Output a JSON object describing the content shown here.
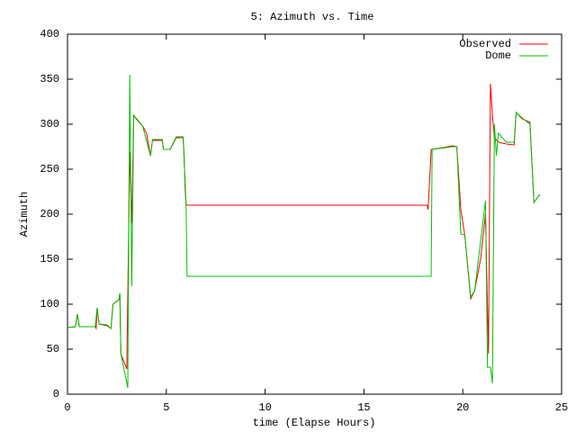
{
  "chart_data": {
    "type": "line",
    "title": "5: Azimuth vs. Time",
    "x_label": "time (Elapse Hours)",
    "y_label": "Azimuth",
    "xlim": [
      0,
      25
    ],
    "xticks": [
      0,
      5,
      10,
      15,
      20,
      25
    ],
    "ylim": [
      0,
      400
    ],
    "yticks": [
      0,
      50,
      100,
      150,
      200,
      250,
      300,
      350,
      400
    ],
    "legend": "upper right",
    "series": [
      {
        "name": "Observed",
        "color": "#ff0000",
        "x": [
          0,
          0.4,
          0.5,
          0.6,
          1.4,
          1.45,
          1.5,
          1.6,
          2.0,
          2.2,
          2.3,
          2.6,
          2.65,
          2.7,
          3.0,
          3.15,
          3.25,
          3.35,
          3.5,
          3.8,
          4.0,
          4.2,
          4.3,
          4.8,
          4.85,
          5.2,
          5.5,
          5.85,
          5.9,
          5.95,
          6.0,
          18.2,
          18.25,
          18.4,
          19.0,
          19.5,
          19.7,
          19.9,
          20.1,
          20.4,
          20.6,
          20.9,
          21.15,
          21.3,
          21.4,
          21.5,
          21.6,
          21.8,
          22.2,
          22.6,
          22.7,
          23.0,
          23.4,
          23.6,
          23.9
        ],
        "values": [
          74,
          75,
          89,
          75,
          75,
          73,
          96,
          78,
          76,
          73,
          100,
          105,
          112,
          45,
          28,
          269,
          190,
          310,
          305,
          298,
          290,
          265,
          282,
          282,
          272,
          272,
          285,
          285,
          266,
          228,
          210,
          210,
          205,
          272,
          274,
          276,
          275,
          205,
          177,
          106,
          115,
          150,
          200,
          45,
          345,
          310,
          285,
          280,
          278,
          277,
          313,
          306,
          302,
          213,
          222
        ]
      },
      {
        "name": "Dome",
        "color": "#00c000",
        "x": [
          0,
          0.4,
          0.5,
          0.6,
          1.4,
          1.5,
          1.6,
          2.0,
          2.2,
          2.3,
          2.6,
          2.65,
          2.7,
          3.05,
          3.15,
          3.25,
          3.35,
          3.8,
          4.2,
          4.3,
          4.8,
          4.85,
          5.2,
          5.5,
          5.85,
          6.0,
          6.05,
          18.4,
          18.45,
          19.5,
          19.7,
          19.9,
          20.1,
          20.4,
          20.6,
          21.15,
          21.25,
          21.4,
          21.5,
          21.6,
          21.7,
          21.8,
          22.2,
          22.6,
          22.7,
          23.0,
          23.4,
          23.6,
          23.9
        ],
        "values": [
          74,
          75,
          89,
          75,
          75,
          96,
          78,
          77,
          73,
          100,
          105,
          112,
          45,
          7,
          355,
          120,
          310,
          298,
          265,
          283,
          283,
          272,
          272,
          286,
          286,
          210,
          131,
          131,
          272,
          275,
          275,
          178,
          177,
          108,
          115,
          215,
          30,
          30,
          12,
          300,
          265,
          290,
          280,
          280,
          313,
          307,
          300,
          213,
          222
        ]
      }
    ]
  }
}
